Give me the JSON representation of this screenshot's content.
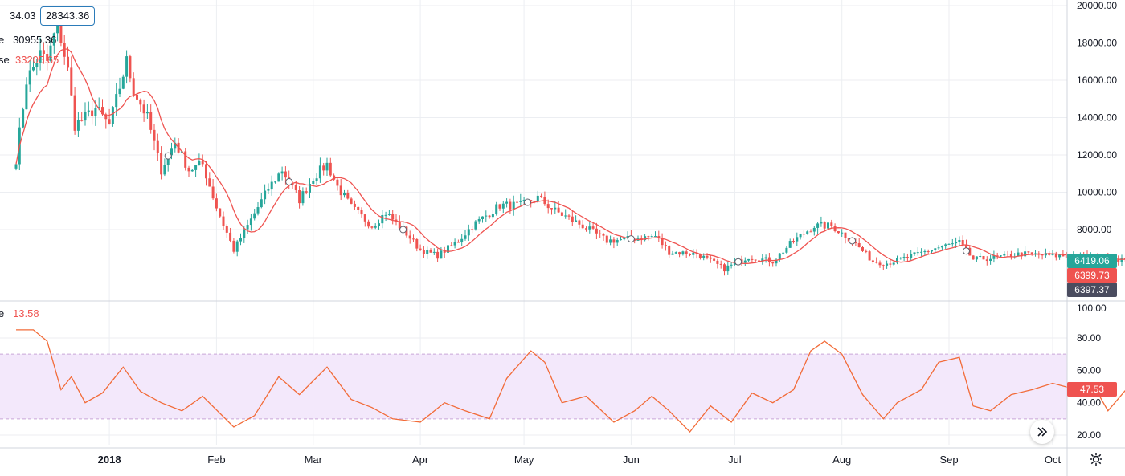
{
  "legend": {
    "top_value": "34.03",
    "box_value": "28343.36",
    "line1_label": "e",
    "line1_value": "30955.36",
    "line2_label": "se",
    "line2_value": "33205.65",
    "osc_label": "e",
    "osc_value": "13.58"
  },
  "price_tags": {
    "last_up": "6419.06",
    "ma": "6399.73",
    "prev": "6397.37",
    "osc": "47.53"
  },
  "colors": {
    "up": "#26a69a",
    "down": "#ef5350",
    "ma": "#ef5350",
    "osc_line": "#f26b38",
    "band_fill": "#f3e8fb",
    "grid": "#eceef2",
    "tag_green": "#26a69a",
    "tag_red": "#ef5350",
    "tag_dark": "#4a4c5f"
  },
  "icons": {
    "scroll": "double-chevron-right-icon",
    "settings": "gear-icon"
  },
  "chart_data": [
    {
      "type": "candlestick",
      "title": "",
      "ylim": [
        0,
        20000
      ],
      "yticks": [
        "20000.00",
        "18000.00",
        "16000.00",
        "14000.00",
        "12000.00",
        "10000.00",
        "8000.00"
      ],
      "xticks": [
        "2018",
        "Feb",
        "Mar",
        "Apr",
        "May",
        "Jun",
        "Jul",
        "Aug",
        "Sep",
        "Oct"
      ],
      "xdomain": [
        "2017-12-05",
        "2018-10-22"
      ],
      "close_anchors": [
        [
          "2017-12-05",
          11800
        ],
        [
          "2017-12-08",
          16000
        ],
        [
          "2017-12-12",
          17400
        ],
        [
          "2017-12-14",
          17000
        ],
        [
          "2017-12-17",
          19100
        ],
        [
          "2017-12-20",
          16500
        ],
        [
          "2017-12-22",
          13600
        ],
        [
          "2017-12-25",
          14000
        ],
        [
          "2017-12-28",
          14500
        ],
        [
          "2018-01-01",
          13600
        ],
        [
          "2018-01-06",
          17000
        ],
        [
          "2018-01-08",
          15500
        ],
        [
          "2018-01-12",
          14000
        ],
        [
          "2018-01-16",
          11200
        ],
        [
          "2018-01-20",
          12700
        ],
        [
          "2018-01-24",
          11200
        ],
        [
          "2018-01-28",
          11500
        ],
        [
          "2018-02-01",
          9200
        ],
        [
          "2018-02-06",
          6900
        ],
        [
          "2018-02-10",
          8200
        ],
        [
          "2018-02-16",
          10200
        ],
        [
          "2018-02-20",
          11200
        ],
        [
          "2018-02-25",
          9600
        ],
        [
          "2018-03-01",
          10800
        ],
        [
          "2018-03-05",
          11500
        ],
        [
          "2018-03-08",
          10300
        ],
        [
          "2018-03-12",
          9200
        ],
        [
          "2018-03-18",
          8200
        ],
        [
          "2018-03-22",
          8900
        ],
        [
          "2018-03-27",
          8000
        ],
        [
          "2018-04-01",
          6900
        ],
        [
          "2018-04-06",
          6600
        ],
        [
          "2018-04-12",
          7400
        ],
        [
          "2018-04-16",
          8200
        ],
        [
          "2018-04-24",
          9300
        ],
        [
          "2018-04-30",
          9300
        ],
        [
          "2018-05-05",
          9700
        ],
        [
          "2018-05-10",
          9000
        ],
        [
          "2018-05-18",
          8200
        ],
        [
          "2018-05-25",
          7400
        ],
        [
          "2018-06-01",
          7500
        ],
        [
          "2018-06-08",
          7650
        ],
        [
          "2018-06-12",
          6800
        ],
        [
          "2018-06-20",
          6700
        ],
        [
          "2018-06-28",
          5900
        ],
        [
          "2018-07-05",
          6550
        ],
        [
          "2018-07-12",
          6300
        ],
        [
          "2018-07-18",
          7400
        ],
        [
          "2018-07-24",
          8200
        ],
        [
          "2018-07-29",
          8200
        ],
        [
          "2018-08-04",
          7400
        ],
        [
          "2018-08-10",
          6300
        ],
        [
          "2018-08-14",
          6200
        ],
        [
          "2018-08-20",
          6500
        ],
        [
          "2018-08-28",
          7000
        ],
        [
          "2018-09-04",
          7300
        ],
        [
          "2018-09-08",
          6400
        ],
        [
          "2018-09-15",
          6500
        ],
        [
          "2018-09-22",
          6700
        ],
        [
          "2018-10-01",
          6600
        ],
        [
          "2018-10-10",
          6550
        ],
        [
          "2018-10-16",
          6400
        ],
        [
          "2018-10-22",
          6419
        ]
      ],
      "last_close": 6419.06,
      "ma_last": 6399.73
    },
    {
      "type": "line",
      "title": "",
      "ylim": [
        15,
        90
      ],
      "yticks": [
        "100.00",
        "80.00",
        "60.00",
        "40.00",
        "20.00"
      ],
      "band": [
        30,
        70
      ],
      "x": [
        "2017-12-05",
        "2017-12-10",
        "2017-12-14",
        "2017-12-18",
        "2017-12-21",
        "2017-12-25",
        "2017-12-30",
        "2018-01-05",
        "2018-01-10",
        "2018-01-16",
        "2018-01-22",
        "2018-01-28",
        "2018-02-06",
        "2018-02-12",
        "2018-02-19",
        "2018-02-25",
        "2018-03-05",
        "2018-03-12",
        "2018-03-18",
        "2018-03-24",
        "2018-04-01",
        "2018-04-08",
        "2018-04-14",
        "2018-04-21",
        "2018-04-26",
        "2018-05-03",
        "2018-05-07",
        "2018-05-12",
        "2018-05-19",
        "2018-05-27",
        "2018-06-02",
        "2018-06-07",
        "2018-06-12",
        "2018-06-18",
        "2018-06-24",
        "2018-06-30",
        "2018-07-06",
        "2018-07-12",
        "2018-07-18",
        "2018-07-23",
        "2018-07-27",
        "2018-08-01",
        "2018-08-07",
        "2018-08-13",
        "2018-08-17",
        "2018-08-24",
        "2018-08-29",
        "2018-09-04",
        "2018-09-08",
        "2018-09-13",
        "2018-09-19",
        "2018-09-25",
        "2018-10-01",
        "2018-10-08",
        "2018-10-13",
        "2018-10-17",
        "2018-10-22"
      ],
      "values": [
        85,
        85,
        78,
        48,
        56,
        40,
        46,
        62,
        47,
        40,
        35,
        44,
        25,
        32,
        56,
        45,
        62,
        42,
        37,
        30,
        28,
        40,
        35,
        30,
        55,
        72,
        65,
        40,
        44,
        28,
        35,
        44,
        35,
        22,
        38,
        28,
        46,
        40,
        48,
        72,
        78,
        70,
        45,
        30,
        40,
        48,
        65,
        68,
        38,
        35,
        45,
        48,
        52,
        48,
        50,
        35,
        47.53
      ],
      "last": 47.53
    }
  ]
}
